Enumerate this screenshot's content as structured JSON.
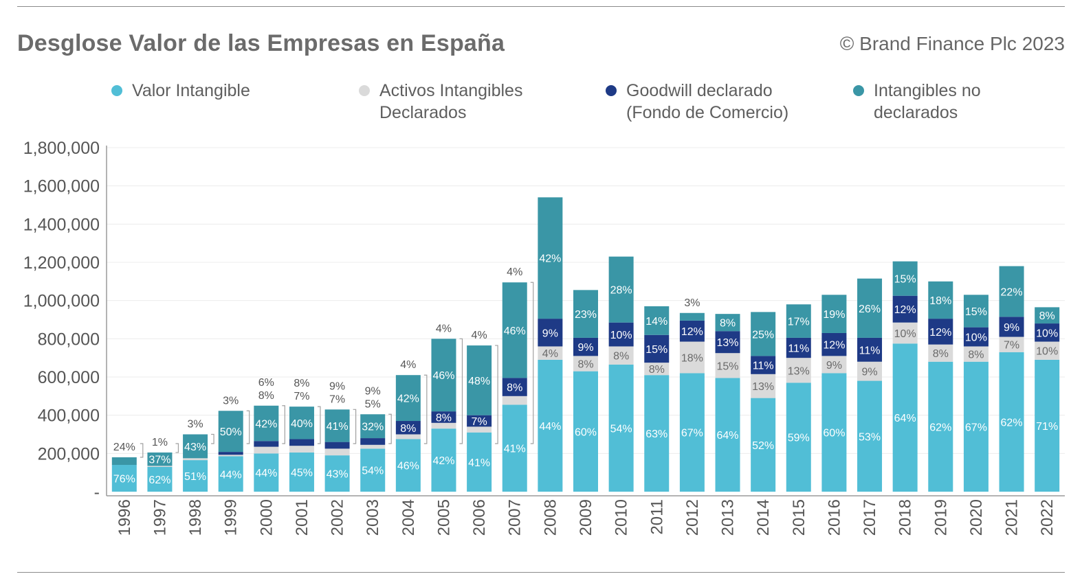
{
  "title": "Desglose Valor de las Empresas en España",
  "copyright": "© Brand Finance Plc 2023",
  "colors": {
    "valor_intangible": "#51bed6",
    "activos_intangibles_declarados": "#dadada",
    "goodwill": "#1e3a86",
    "intangibles_no_declarados": "#3a96a6"
  },
  "legend": [
    {
      "label": "Valor Intangible",
      "color": "#51bed6"
    },
    {
      "label": "Activos Intangibles\nDeclarados",
      "color": "#dadada"
    },
    {
      "label": "Goodwill declarado\n(Fondo de Comercio)",
      "color": "#1e3a86"
    },
    {
      "label": "Intangibles no\ndeclarados",
      "color": "#3a96a6"
    }
  ],
  "chart_data": {
    "type": "bar",
    "stacked": true,
    "title": "Desglose Valor de las Empresas en España",
    "ylim": [
      0,
      1800000
    ],
    "yticks": [
      0,
      200000,
      400000,
      600000,
      800000,
      1000000,
      1200000,
      1400000,
      1600000,
      1800000
    ],
    "ytick_labels": [
      "-",
      "200,000",
      "400,000",
      "600,000",
      "800,000",
      "1,000,000",
      "1,200,000",
      "1,400,000",
      "1,600,000",
      "1,800,000"
    ],
    "grid": true,
    "legend_position": "top",
    "categories": [
      "1996",
      "1997",
      "1998",
      "1999",
      "2000",
      "2001",
      "2002",
      "2003",
      "2004",
      "2005",
      "2006",
      "2007",
      "2008",
      "2009",
      "2010",
      "2011",
      "2012",
      "2013",
      "2014",
      "2015",
      "2016",
      "2017",
      "2018",
      "2019",
      "2020",
      "2021",
      "2022"
    ],
    "series": [
      {
        "name": "Valor Intangible",
        "color": "#51bed6",
        "values": [
          140000,
          130000,
          165000,
          185000,
          200000,
          205000,
          190000,
          225000,
          275000,
          330000,
          310000,
          455000,
          690000,
          630000,
          665000,
          610000,
          620000,
          595000,
          490000,
          570000,
          620000,
          580000,
          775000,
          680000,
          680000,
          730000,
          690000
        ],
        "labels": [
          "76%",
          "62%",
          "51%",
          "44%",
          "44%",
          "45%",
          "43%",
          "54%",
          "46%",
          "42%",
          "41%",
          "41%",
          "44%",
          "60%",
          "54%",
          "63%",
          "67%",
          "64%",
          "52%",
          "59%",
          "60%",
          "53%",
          "64%",
          "62%",
          "67%",
          "62%",
          "71%"
        ]
      },
      {
        "name": "Activos Intangibles Declarados",
        "color": "#dadada",
        "values": [
          0,
          5000,
          10000,
          8000,
          35000,
          35000,
          35000,
          20000,
          25000,
          30000,
          30000,
          45000,
          70000,
          80000,
          95000,
          65000,
          165000,
          130000,
          125000,
          130000,
          90000,
          100000,
          110000,
          90000,
          80000,
          80000,
          95000
        ],
        "labels": [
          "",
          "",
          "",
          "",
          "6%",
          "8%",
          "9%",
          "9%",
          "",
          "",
          "",
          "",
          "4%",
          "8%",
          "8%",
          "8%",
          "18%",
          "15%",
          "13%",
          "13%",
          "9%",
          "9%",
          "10%",
          "8%",
          "8%",
          "7%",
          "10%"
        ]
      },
      {
        "name": "Goodwill declarado (Fondo de Comercio)",
        "color": "#1e3a86",
        "values": [
          0,
          0,
          0,
          15000,
          30000,
          35000,
          35000,
          35000,
          70000,
          60000,
          60000,
          95000,
          145000,
          95000,
          125000,
          145000,
          110000,
          115000,
          95000,
          105000,
          120000,
          125000,
          140000,
          135000,
          100000,
          105000,
          95000
        ],
        "labels": [
          "",
          "",
          "",
          "",
          "",
          "",
          "",
          "",
          "8%",
          "8%",
          "7%",
          "8%",
          "9%",
          "9%",
          "10%",
          "15%",
          "12%",
          "13%",
          "11%",
          "11%",
          "12%",
          "11%",
          "12%",
          "12%",
          "10%",
          "9%",
          "10%"
        ]
      },
      {
        "name": "Intangibles no declarados",
        "color": "#3a96a6",
        "values": [
          40000,
          70000,
          125000,
          215000,
          185000,
          170000,
          170000,
          125000,
          240000,
          380000,
          365000,
          500000,
          635000,
          250000,
          345000,
          150000,
          40000,
          90000,
          230000,
          175000,
          200000,
          310000,
          180000,
          195000,
          170000,
          265000,
          85000
        ],
        "labels": [
          "",
          "37%",
          "43%",
          "50%",
          "42%",
          "40%",
          "41%",
          "32%",
          "42%",
          "46%",
          "48%",
          "46%",
          "42%",
          "23%",
          "28%",
          "14%",
          "",
          "8%",
          "25%",
          "17%",
          "19%",
          "26%",
          "15%",
          "18%",
          "15%",
          "22%",
          "8%"
        ]
      }
    ],
    "annotations": [
      {
        "category": "1996",
        "labels": [
          "24%"
        ]
      },
      {
        "category": "1997",
        "labels": [
          "1%"
        ]
      },
      {
        "category": "1998",
        "labels": [
          "3%"
        ]
      },
      {
        "category": "1999",
        "labels": [
          "3%"
        ]
      },
      {
        "category": "2000",
        "labels": [
          "8%"
        ]
      },
      {
        "category": "2001",
        "labels": [
          "7%"
        ]
      },
      {
        "category": "2002",
        "labels": [
          "7%"
        ]
      },
      {
        "category": "2003",
        "labels": [
          "5%"
        ]
      },
      {
        "category": "2004",
        "labels": [
          "4%"
        ]
      },
      {
        "category": "2005",
        "labels": [
          "4%"
        ]
      },
      {
        "category": "2006",
        "labels": [
          "4%"
        ]
      },
      {
        "category": "2007",
        "labels": [
          "4%"
        ]
      },
      {
        "category": "2012",
        "labels": [
          "3%"
        ]
      }
    ]
  }
}
